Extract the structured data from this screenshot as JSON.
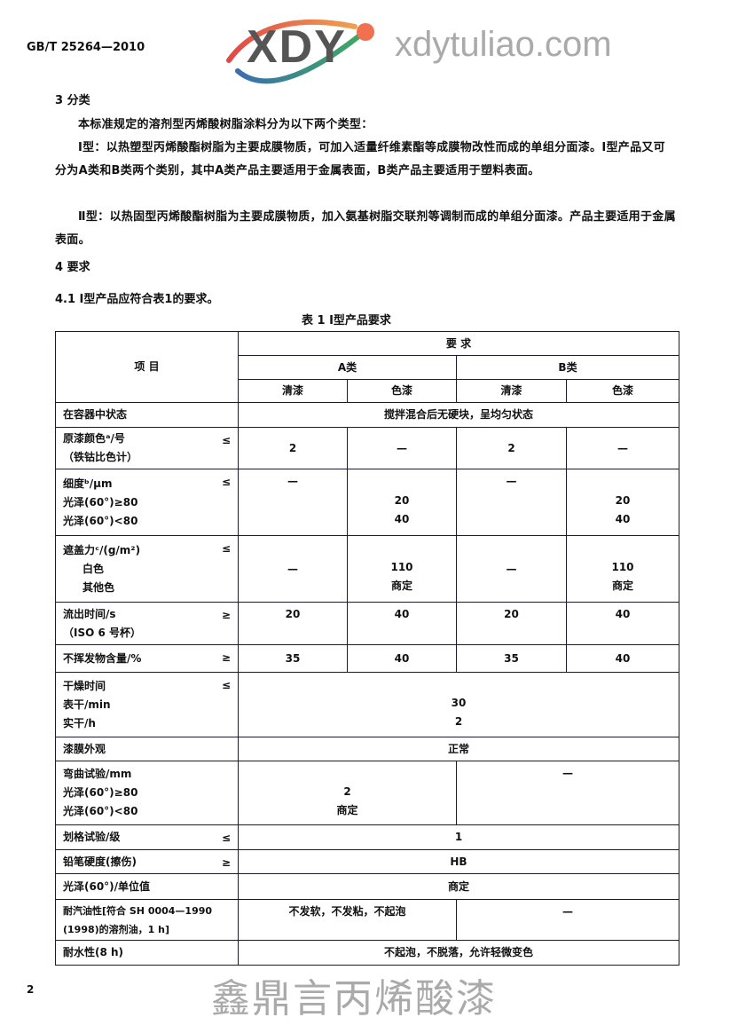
{
  "header": {
    "standard_no": "GB/T 25264—2010"
  },
  "section3": {
    "heading": "3  分类",
    "p1": "本标准规定的溶剂型丙烯酸树脂涂料分为以下两个类型：",
    "p2": "Ⅰ型：以热塑型丙烯酸酯树脂为主要成膜物质，可加入适量纤维素酯等成膜物改性而成的单组分面漆。Ⅰ型产品又可分为A类和B类两个类别，其中A类产品主要适用于金属表面，B类产品主要适用于塑料表面。",
    "p3": "Ⅱ型：以热固型丙烯酸酯树脂为主要成膜物质，加入氨基树脂交联剂等调制而成的单组分面漆。产品主要适用于金属表面。"
  },
  "section4": {
    "heading": "4  要求",
    "s41": "4.1  Ⅰ型产品应符合表1的要求。"
  },
  "table": {
    "caption": "表 1   Ⅰ型产品要求",
    "h_item": "项        目",
    "h_req": "要    求",
    "h_a": "A类",
    "h_b": "B类",
    "h_clear": "清漆",
    "h_color": "色漆",
    "r1": {
      "item": "在容器中状态",
      "v": "搅拌混合后无硬块，呈均匀状态"
    },
    "r2": {
      "item": "原漆颜色ᵃ/号",
      "item2": "（铁钴比色计）",
      "sign": "≤",
      "v": [
        "2",
        "—",
        "2",
        "—"
      ]
    },
    "r3": {
      "item": "细度ᵇ/μm",
      "item2": "光泽(60°)≥80",
      "item3": "光泽(60°)<80",
      "sign": "≤",
      "a1": "—",
      "a2a": "20",
      "a2b": "40",
      "b1": "—",
      "b2a": "20",
      "b2b": "40"
    },
    "r4": {
      "item": "遮盖力ᶜ/(g/m²)",
      "item2": "白色",
      "item3": "其他色",
      "sign": "≤",
      "a1": "—",
      "a2a": "110",
      "a2b": "商定",
      "b1": "—",
      "b2a": "110",
      "b2b": "商定"
    },
    "r5": {
      "item": "流出时间/s",
      "item2": "（ISO 6 号杯）",
      "sign": "≥",
      "v": [
        "20",
        "40",
        "20",
        "40"
      ]
    },
    "r6": {
      "item": "不挥发物含量/%",
      "sign": "≥",
      "v": [
        "35",
        "40",
        "35",
        "40"
      ]
    },
    "r7": {
      "item": "干燥时间",
      "item2": "表干/min",
      "item3": "实干/h",
      "sign": "≤",
      "v1": "30",
      "v2": "2"
    },
    "r8": {
      "item": "漆膜外观",
      "v": "正常"
    },
    "r9": {
      "item": "弯曲试验/mm",
      "item2": "光泽(60°)≥80",
      "item3": "光泽(60°)<80",
      "a1": "2",
      "a2": "商定",
      "b": "—"
    },
    "r10": {
      "item": "划格试验/级",
      "sign": "≤",
      "v": "1"
    },
    "r11": {
      "item": "铅笔硬度(擦伤)",
      "sign": "≥",
      "v": "HB"
    },
    "r12": {
      "item": "光泽(60°)/单位值",
      "v": "商定"
    },
    "r13": {
      "item": "耐汽油性[符合 SH 0004—1990",
      "item2": "(1998)的溶剂油，1 h]",
      "a": "不发软，不发粘，不起泡",
      "b": "—"
    },
    "r14": {
      "item": "耐水性(8 h)",
      "v": "不起泡，不脱落，允许轻微变色"
    }
  },
  "watermark": {
    "logo": "XDY",
    "name": "鑫鼎言丙烯酸漆",
    "url": "xdytuliao.com"
  },
  "footer": {
    "page": "2"
  }
}
